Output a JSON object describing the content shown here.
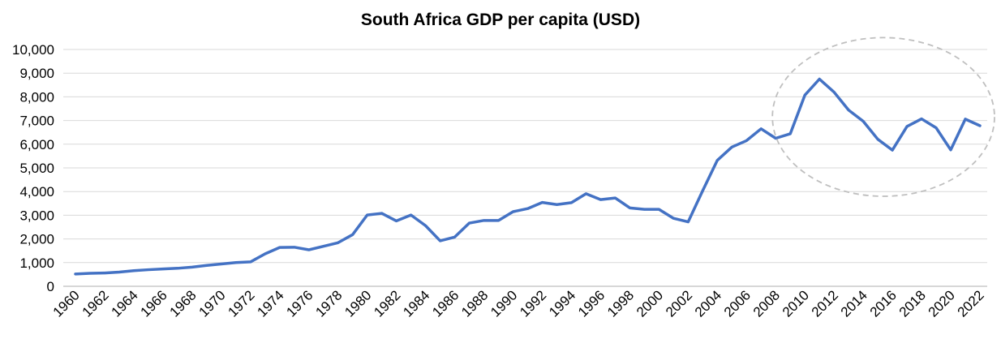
{
  "chart_data": {
    "type": "line",
    "title": "South Africa GDP per capita (USD)",
    "xlabel": "",
    "ylabel": "",
    "ylim": [
      0,
      10000
    ],
    "yticks": [
      0,
      1000,
      2000,
      3000,
      4000,
      5000,
      6000,
      7000,
      8000,
      9000,
      10000
    ],
    "ytick_labels": [
      "0",
      "1,000",
      "2,000",
      "3,000",
      "4,000",
      "5,000",
      "6,000",
      "7,000",
      "8,000",
      "9,000",
      "10,000"
    ],
    "xtick_labels": [
      "1960",
      "1962",
      "1964",
      "1966",
      "1968",
      "1970",
      "1972",
      "1974",
      "1976",
      "1978",
      "1980",
      "1982",
      "1984",
      "1986",
      "1988",
      "1990",
      "1992",
      "1994",
      "1996",
      "1998",
      "2000",
      "2002",
      "2004",
      "2006",
      "2008",
      "2010",
      "2012",
      "2014",
      "2016",
      "2018",
      "2020",
      "2022"
    ],
    "grid": true,
    "legend": "none",
    "series": [
      {
        "name": "South Africa GDP per capita (USD)",
        "color": "#4472C4",
        "x": [
          1960,
          1961,
          1962,
          1963,
          1964,
          1965,
          1966,
          1967,
          1968,
          1969,
          1970,
          1971,
          1972,
          1973,
          1974,
          1975,
          1976,
          1977,
          1978,
          1979,
          1980,
          1981,
          1982,
          1983,
          1984,
          1985,
          1986,
          1987,
          1988,
          1989,
          1990,
          1991,
          1992,
          1993,
          1994,
          1995,
          1996,
          1997,
          1998,
          1999,
          2000,
          2001,
          2002,
          2003,
          2004,
          2005,
          2006,
          2007,
          2008,
          2009,
          2010,
          2011,
          2012,
          2013,
          2014,
          2015,
          2016,
          2017,
          2018,
          2019,
          2020,
          2021,
          2022
        ],
        "values": [
          520,
          550,
          560,
          600,
          660,
          700,
          730,
          760,
          810,
          880,
          940,
          1000,
          1030,
          1370,
          1640,
          1650,
          1540,
          1690,
          1840,
          2180,
          3010,
          3080,
          2760,
          3010,
          2560,
          1920,
          2080,
          2670,
          2780,
          2780,
          3150,
          3280,
          3540,
          3450,
          3530,
          3910,
          3660,
          3730,
          3310,
          3250,
          3250,
          2870,
          2720,
          4040,
          5320,
          5880,
          6150,
          6650,
          6250,
          6440,
          8070,
          8750,
          8200,
          7440,
          6970,
          6210,
          5750,
          6750,
          7070,
          6690,
          5760,
          7060,
          6780
        ]
      }
    ],
    "annotations": [
      {
        "type": "highlight-ellipse",
        "style": "dashed",
        "color": "#bfbfbf",
        "x_range": [
          2009,
          2022
        ],
        "y_range": [
          3800,
          10500
        ]
      }
    ]
  }
}
